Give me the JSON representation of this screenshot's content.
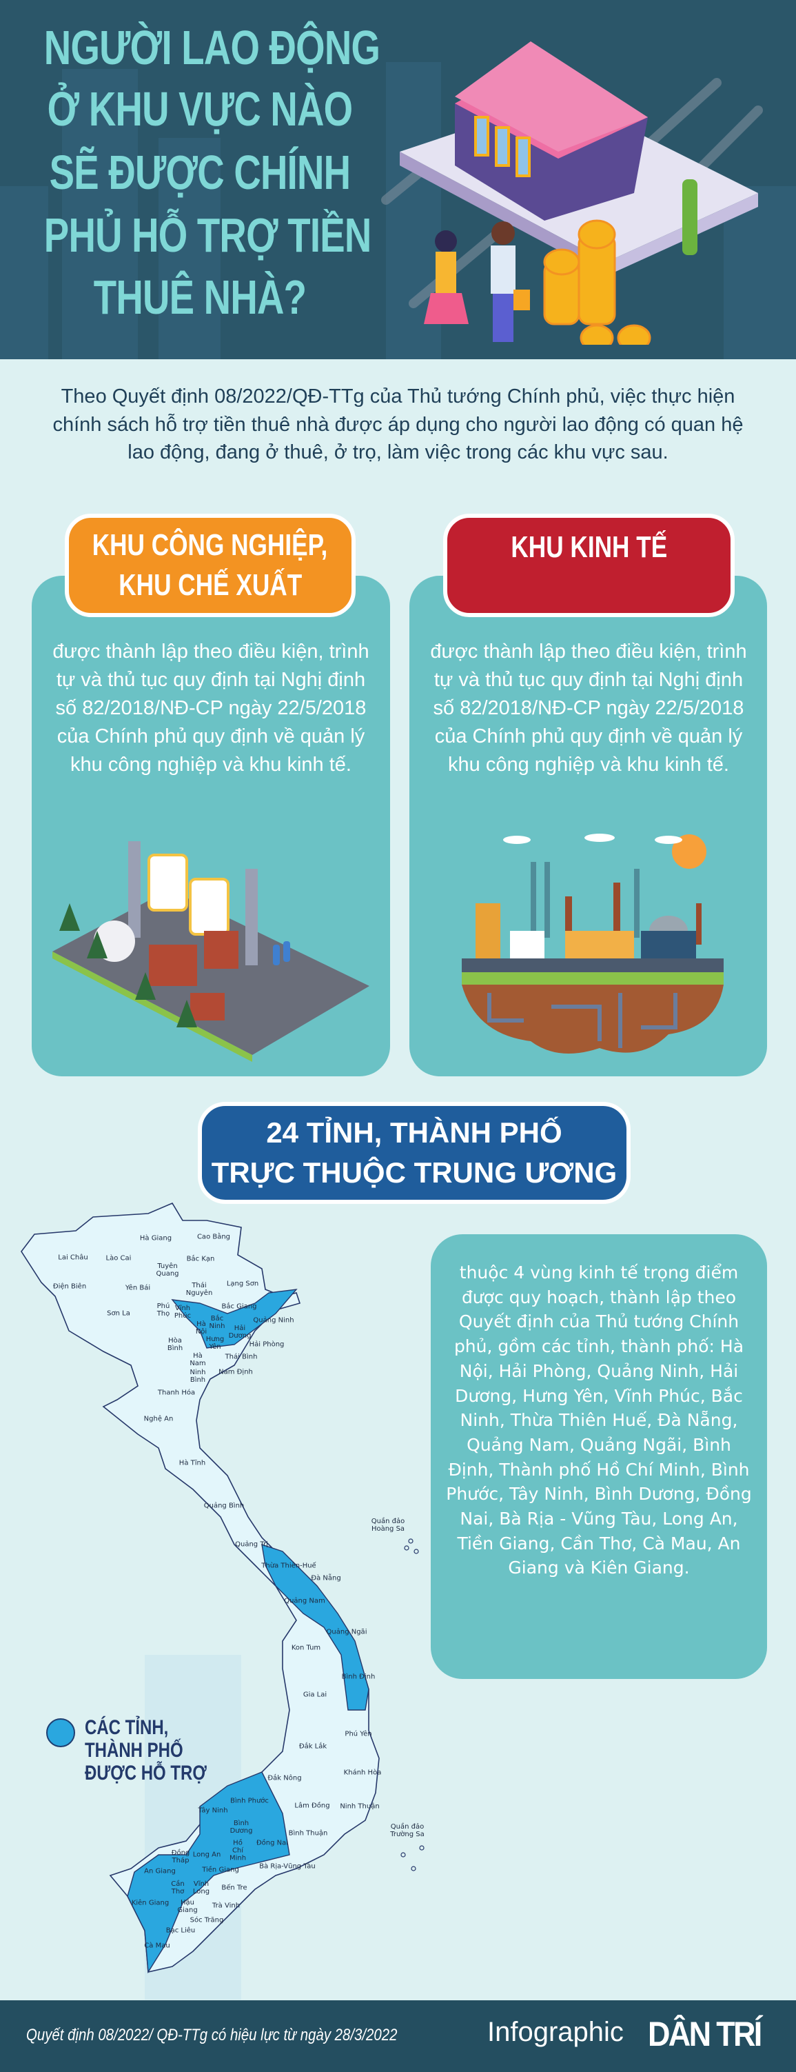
{
  "header": {
    "title_lines": [
      "NGƯỜI LAO ĐỘNG",
      "Ở KHU VỰC NÀO",
      "SẼ ĐƯỢC CHÍNH",
      "PHỦ HỖ TRỢ TIỀN",
      "THUÊ NHÀ?"
    ],
    "illustration": "house-couple-coins-illustration"
  },
  "intro": "Theo Quyết định 08/2022/QĐ-TTg của Thủ tướng Chính phủ, việc thực hiện chính sách hỗ trợ tiền thuê nhà được áp dụng cho người lao động có quan hệ lao động, đang ở thuê, ở trọ, làm việc trong các khu vực sau.",
  "cards": [
    {
      "title_lines": [
        "KHU CÔNG NGHIỆP,",
        "KHU CHẾ XUẤT"
      ],
      "color": "#f39322",
      "text": "được thành lập theo điều kiện, trình tự và thủ tục quy định tại Nghị định số 82/2018/NĐ-CP ngày 22/5/2018 của Chính phủ quy định về quản lý khu công nghiệp và khu kinh tế.",
      "illustration": "industrial-park-illustration"
    },
    {
      "title_lines": [
        "KHU KINH TẾ"
      ],
      "color": "#c01f2f",
      "text": "được thành lập theo điều kiện, trình tự và thủ tục quy định tại Nghị định số 82/2018/NĐ-CP ngày 22/5/2018 của Chính phủ quy định về quản lý khu công nghiệp và khu kinh tế.",
      "illustration": "economic-zone-illustration"
    }
  ],
  "provinces_section": {
    "title_lines": [
      "24 TỈNH, THÀNH PHỐ",
      "TRỰC THUỘC TRUNG ƯƠNG"
    ],
    "color": "#1f5d9c",
    "text": "thuộc 4 vùng kinh tế trọng điểm được quy hoạch, thành lập theo Quyết định của Thủ tướng Chính phủ, gồm các tỉnh, thành phố: Hà Nội, Hải Phòng, Quảng Ninh, Hải Dương, Hưng Yên, Vĩnh Phúc, Bắc Ninh, Thừa Thiên Huế, Đà Nẵng, Quảng Nam, Quảng Ngãi, Bình Định, Thành phố Hồ Chí Minh, Bình Phước, Tây Ninh, Bình Dương, Đồng Nai, Bà Rịa - Vũng Tàu, Long An, Tiền Giang, Cần Thơ, Cà Mau, An Giang và Kiên Giang."
  },
  "map": {
    "supported_color": "#2aa7df",
    "other_color": "#e3f6fb",
    "legend_lines": [
      "CÁC TỈNH,",
      "THÀNH PHỐ",
      "ĐƯỢC HỖ TRỢ"
    ],
    "labels": [
      "Hà Giang",
      "Cao Bằng",
      "Lai Châu",
      "Lào Cai",
      "Tuyên Quang",
      "Bắc Kạn",
      "Điện Biên",
      "Yên Bái",
      "Thái Nguyên",
      "Lạng Sơn",
      "Phú Thọ",
      "Vĩnh Phúc",
      "Sơn La",
      "Bắc Giang",
      "Hà Nội",
      "Bắc Ninh",
      "Hải Dương",
      "Quảng Ninh",
      "Hưng Yên",
      "Hải Phòng",
      "Hòa Bình",
      "Hà Nam",
      "Thái Bình",
      "Ninh Bình",
      "Nam Định",
      "Thanh Hóa",
      "Nghệ An",
      "Hà Tĩnh",
      "Quảng Bình",
      "Quảng Trị",
      "Quần đảo Hoàng Sa",
      "Thừa Thiên-Huế",
      "Đà Nẵng",
      "Quảng Nam",
      "Quảng Ngãi",
      "Kon Tum",
      "Bình Định",
      "Gia Lai",
      "Phú Yên",
      "Đắk Lắk",
      "Khánh Hòa",
      "Đắk Nông",
      "Bình Phước",
      "Lâm Đồng",
      "Ninh Thuận",
      "Tây Ninh",
      "Bình Dương",
      "Bình Thuận",
      "Quần đảo Trường Sa",
      "Hồ Chí Minh",
      "Đồng Nai",
      "Đồng Tháp",
      "Long An",
      "An Giang",
      "Tiền Giang",
      "Bà Rịa-Vũng Tàu",
      "Cần Thơ",
      "Vĩnh Long",
      "Bến Tre",
      "Kiên Giang",
      "Hậu Giang",
      "Trà Vinh",
      "Sóc Trăng",
      "Bạc Liêu",
      "Cà Mau"
    ]
  },
  "footer": {
    "note": "Quyết định 08/2022/ QĐ-TTg có hiệu lực từ ngày 28/3/2022",
    "brand": "Infographic",
    "logo": "DÂN TRÍ"
  }
}
